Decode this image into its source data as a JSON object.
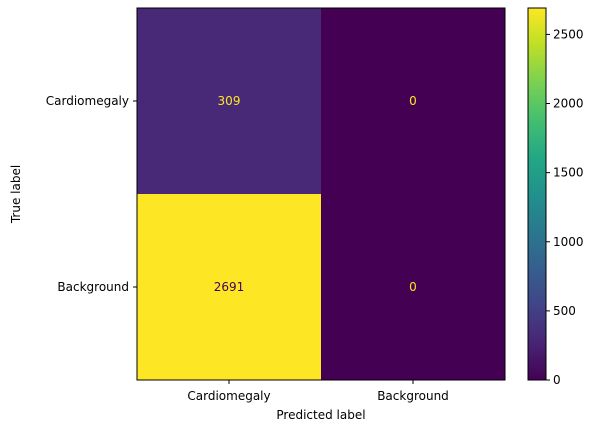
{
  "chart_data": {
    "type": "heatmap",
    "title": "",
    "xlabel": "Predicted label",
    "ylabel": "True label",
    "x_categories": [
      "Cardiomegaly",
      "Background"
    ],
    "y_categories": [
      "Cardiomegaly",
      "Background"
    ],
    "matrix": [
      [
        309,
        0
      ],
      [
        2691,
        0
      ]
    ],
    "cell_labels": [
      [
        "309",
        "0"
      ],
      [
        "2691",
        "0"
      ]
    ],
    "colormap": "viridis",
    "color_range": [
      0,
      2691
    ],
    "colorbar_ticks": [
      0,
      500,
      1000,
      1500,
      2000,
      2500
    ],
    "colorbar_tick_labels": [
      "0",
      "500",
      "1000",
      "1500",
      "2000",
      "2500"
    ],
    "colors": {
      "low_text": "#fde725",
      "high_text": "#440154"
    },
    "grid": false
  }
}
